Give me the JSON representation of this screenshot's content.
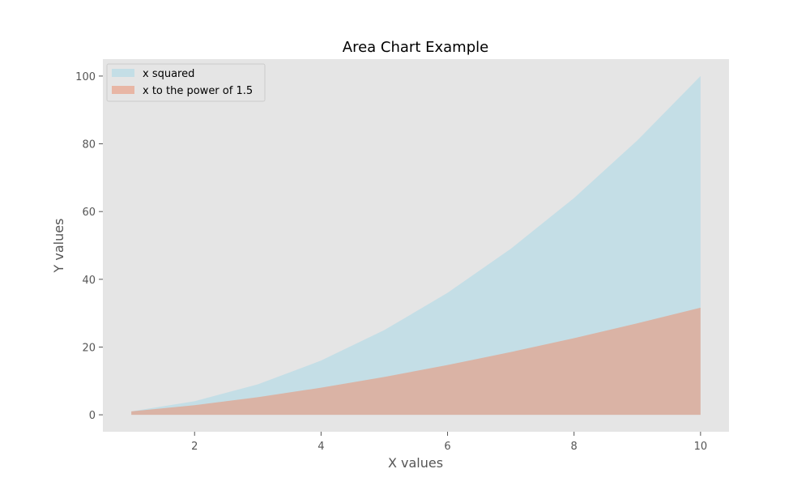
{
  "chart_data": {
    "type": "area",
    "title": "Area Chart Example",
    "xlabel": "X values",
    "ylabel": "Y values",
    "x": [
      1,
      2,
      3,
      4,
      5,
      6,
      7,
      8,
      9,
      10
    ],
    "xlim": [
      0.55,
      10.45
    ],
    "ylim": [
      -5,
      105
    ],
    "xticks": [
      2,
      4,
      6,
      8,
      10
    ],
    "yticks": [
      0,
      20,
      40,
      60,
      80,
      100
    ],
    "grid": false,
    "legend_position": "top-left",
    "series": [
      {
        "name": "x squared",
        "color": "#add8e6",
        "alpha": 0.6,
        "values": [
          1,
          4,
          9,
          16,
          25,
          36,
          49,
          64,
          81,
          100
        ]
      },
      {
        "name": "x to the power of 1.5",
        "color": "#e9967a",
        "alpha": 0.6,
        "values": [
          1,
          2.83,
          5.2,
          8,
          11.18,
          14.7,
          18.52,
          22.63,
          27,
          31.62
        ]
      }
    ],
    "colors": {
      "plot_background": "#e5e5e5",
      "figure_background": "#ffffff"
    }
  }
}
